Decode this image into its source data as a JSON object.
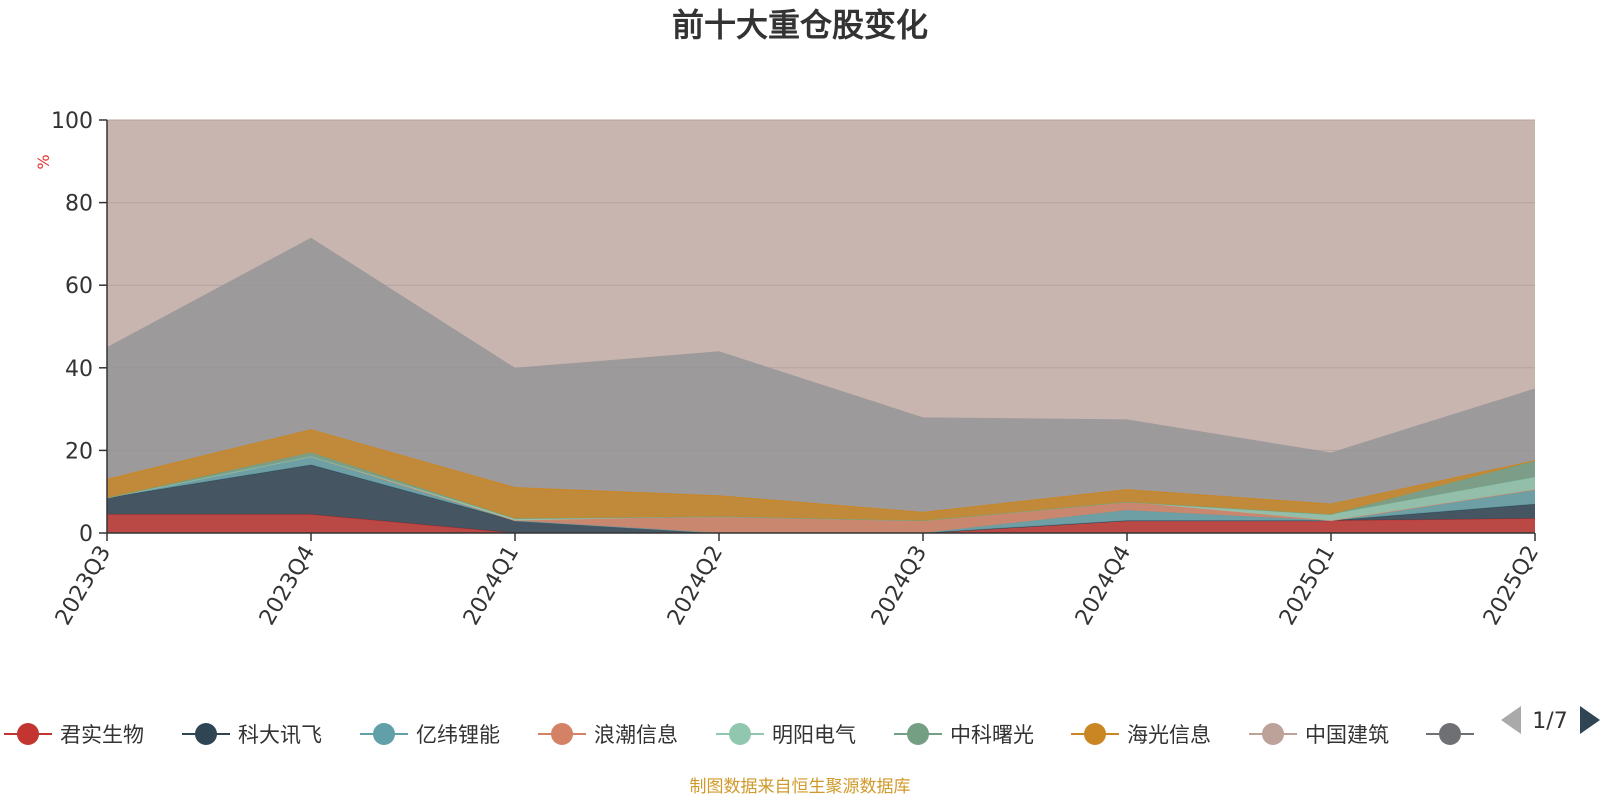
{
  "chart_data": {
    "type": "area",
    "title": "前十大重仓股变化",
    "ylabel": "%",
    "ylim": [
      0,
      100
    ],
    "yticks": [
      0,
      20,
      40,
      60,
      80,
      100
    ],
    "grid": true,
    "legend_position": "bottom",
    "categories": [
      "2023Q3",
      "2023Q4",
      "2024Q1",
      "2024Q2",
      "2024Q3",
      "2024Q4",
      "2025Q1",
      "2025Q2"
    ],
    "series": [
      {
        "name": "君实生物",
        "color": "#c23531",
        "values": [
          4.5,
          4.5,
          0,
          0,
          0,
          3,
          3,
          3.5
        ]
      },
      {
        "name": "科大讯飞",
        "color": "#2f4554",
        "values": [
          4,
          12,
          3,
          0,
          0,
          0,
          0,
          3.5
        ]
      },
      {
        "name": "亿纬锂能",
        "color": "#61a0a8",
        "values": [
          0,
          2,
          0,
          0,
          0,
          2.5,
          0,
          3.5
        ]
      },
      {
        "name": "浪潮信息",
        "color": "#d48265",
        "values": [
          0,
          0,
          0,
          4,
          3,
          2,
          0,
          0
        ]
      },
      {
        "name": "明阳电气",
        "color": "#91c7ae",
        "values": [
          0,
          0,
          0.5,
          0,
          0,
          0,
          1.5,
          3
        ]
      },
      {
        "name": "中科曙光",
        "color": "#749f83",
        "values": [
          0,
          1,
          0,
          0,
          0,
          0,
          0,
          4
        ]
      },
      {
        "name": "海光信息",
        "color": "#ca8622",
        "values": [
          4.5,
          5.5,
          7.5,
          5,
          2,
          3,
          2.5,
          0
        ]
      }
    ],
    "legend": [
      {
        "name": "君实生物",
        "color": "#c23531"
      },
      {
        "name": "科大讯飞",
        "color": "#2f4554"
      },
      {
        "name": "亿纬锂能",
        "color": "#61a0a8"
      },
      {
        "name": "浪潮信息",
        "color": "#d48265"
      },
      {
        "name": "明阳电气",
        "color": "#91c7ae"
      },
      {
        "name": "中科曙光",
        "color": "#749f83"
      },
      {
        "name": "海光信息",
        "color": "#ca8622"
      },
      {
        "name": "中国建筑",
        "color": "#bda29a"
      },
      {
        "name": "",
        "color": "#6e7074"
      }
    ],
    "legend_page": "1/7",
    "total_height": [
      45,
      71.5,
      40,
      44,
      28,
      27.5,
      19.5,
      35
    ]
  },
  "source_note": "制图数据来自恒生聚源数据库",
  "colors": {
    "background_area": "#c9b5af",
    "unit_label": "#e03030",
    "source_note": "#d09a2a",
    "axis": "#333333"
  }
}
